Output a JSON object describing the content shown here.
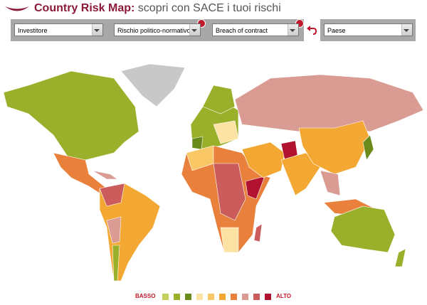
{
  "header": {
    "title_bold": "Country Risk Map:",
    "title_rest": "scopri con SACE i tuoi rischi"
  },
  "filters": [
    "Investitore",
    "Rischio politico-normativo",
    "Breach of contract",
    "Paese"
  ],
  "legend": {
    "low": "BASSO",
    "high": "ALTO",
    "colors": [
      "#c4cf5c",
      "#9bb02a",
      "#6b8a1c",
      "#fce3a4",
      "#f9c766",
      "#f3a833",
      "#e9813c",
      "#d99b92",
      "#cc5b5b",
      "#b0122f"
    ]
  }
}
